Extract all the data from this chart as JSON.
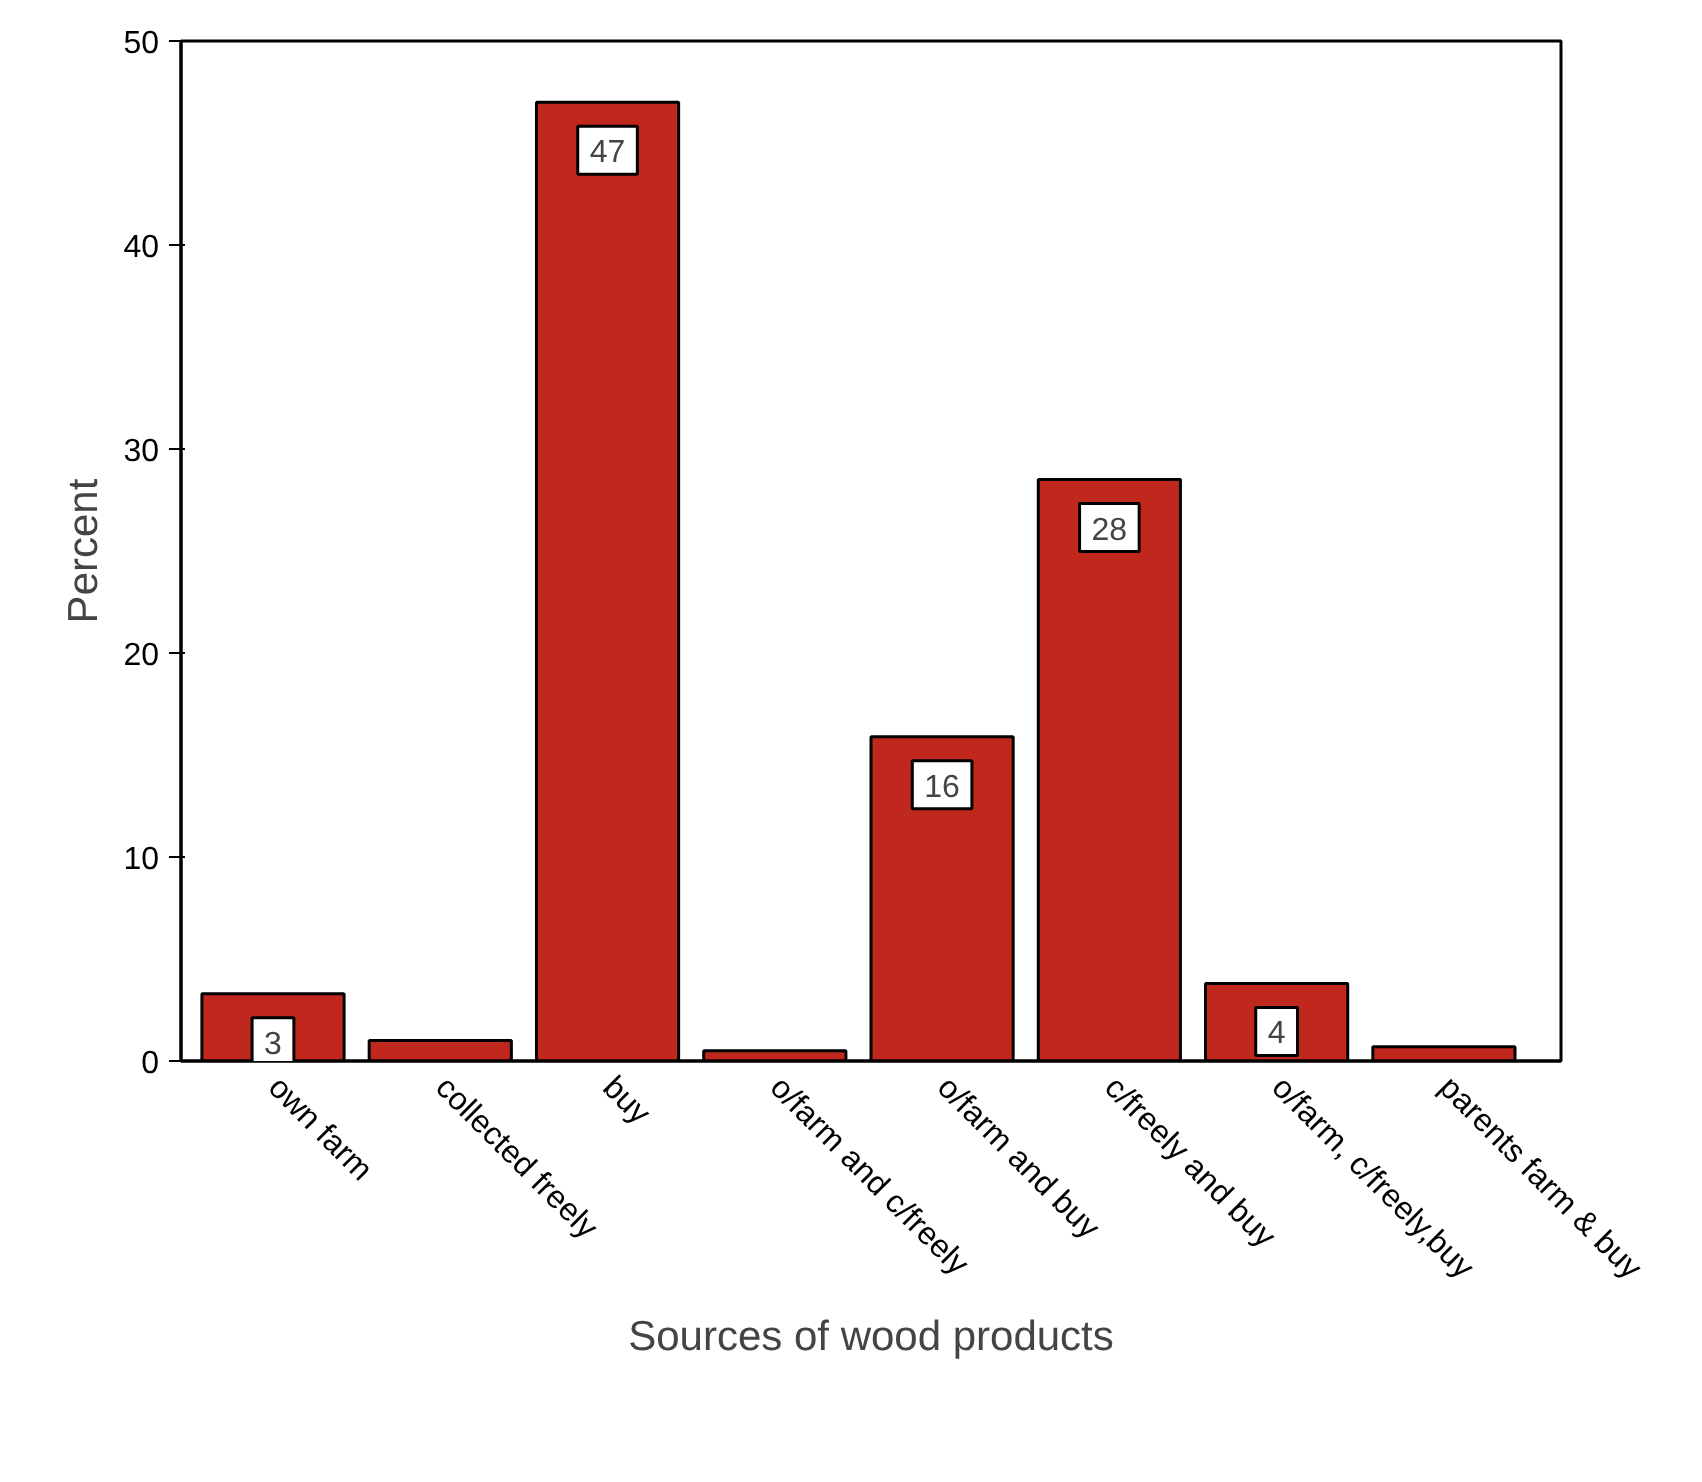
{
  "chart_data": {
    "type": "bar",
    "xlabel": "Sources of wood products",
    "ylabel": "Percent",
    "categories": [
      "own farm",
      "collected freely",
      "buy",
      "o/farm and c/freely",
      "o/farm and buy",
      "c/freely and buy",
      "o/farm, c/freely,buy",
      "parents farm & buy"
    ],
    "values": [
      3.3,
      1.0,
      47.0,
      0.5,
      15.9,
      28.5,
      3.8,
      0.7
    ],
    "value_labels": [
      "3",
      null,
      "47",
      null,
      "16",
      "28",
      "4",
      null
    ],
    "color": "#c0281e",
    "ylim": [
      0,
      50
    ],
    "yticks": [
      0,
      10,
      20,
      30,
      40,
      50
    ],
    "grid": false
  }
}
